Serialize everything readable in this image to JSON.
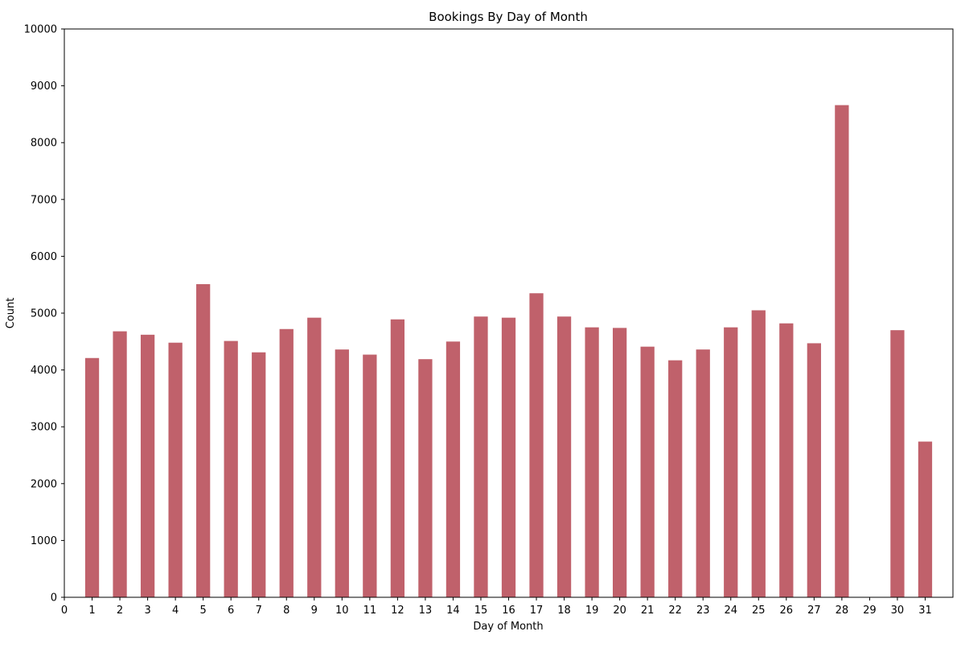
{
  "chart_data": {
    "type": "bar",
    "title": "Bookings By Day of Month",
    "xlabel": "Day of Month",
    "ylabel": "Count",
    "xlim": [
      0,
      32
    ],
    "ylim": [
      0,
      10000
    ],
    "xticks": [
      0,
      1,
      2,
      3,
      4,
      5,
      6,
      7,
      8,
      9,
      10,
      11,
      12,
      13,
      14,
      15,
      16,
      17,
      18,
      19,
      20,
      21,
      22,
      23,
      24,
      25,
      26,
      27,
      28,
      29,
      30,
      31
    ],
    "yticks": [
      0,
      1000,
      2000,
      3000,
      4000,
      5000,
      6000,
      7000,
      8000,
      9000,
      10000
    ],
    "categories": [
      1,
      2,
      3,
      4,
      5,
      6,
      7,
      8,
      9,
      10,
      11,
      12,
      13,
      14,
      15,
      16,
      17,
      18,
      19,
      20,
      21,
      22,
      23,
      24,
      25,
      26,
      27,
      28,
      29,
      30,
      31
    ],
    "values": [
      4210,
      4680,
      4620,
      4480,
      5510,
      4510,
      4310,
      4720,
      4920,
      4360,
      4270,
      4890,
      4190,
      4500,
      4940,
      4920,
      5350,
      4940,
      4750,
      4740,
      4410,
      4170,
      4360,
      4750,
      5050,
      4820,
      4470,
      8660,
      0,
      4700,
      2740
    ],
    "bar_color": "#c0616b",
    "grid": false,
    "legend": "none"
  }
}
